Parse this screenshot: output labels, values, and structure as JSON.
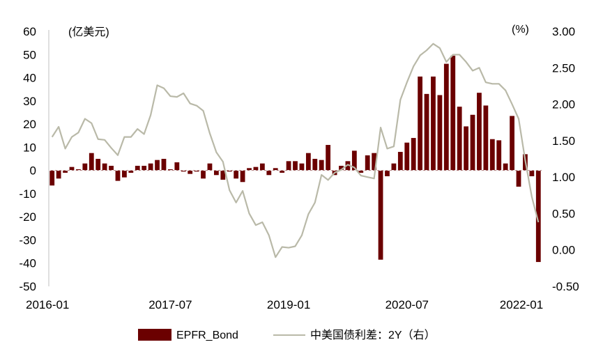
{
  "chart_data": {
    "type": "bar",
    "left_unit": "(亿美元)",
    "right_unit": "(%)",
    "x_tick_labels": [
      "2016-01",
      "2017-07",
      "2019-01",
      "2020-07",
      "2022-01"
    ],
    "left_axis": {
      "min": -50,
      "max": 60,
      "ticks": [
        "60",
        "50",
        "40",
        "30",
        "20",
        "10",
        "0",
        "-10",
        "-20",
        "-30",
        "-40",
        "-50"
      ]
    },
    "right_axis": {
      "min": -0.5,
      "max": 3.0,
      "ticks": [
        "3.00",
        "2.50",
        "2.00",
        "1.50",
        "1.00",
        "0.50",
        "0.00",
        "-0.50"
      ]
    },
    "categories": [
      "2016-01",
      "2016-02",
      "2016-03",
      "2016-04",
      "2016-05",
      "2016-06",
      "2016-07",
      "2016-08",
      "2016-09",
      "2016-10",
      "2016-11",
      "2016-12",
      "2017-01",
      "2017-02",
      "2017-03",
      "2017-04",
      "2017-05",
      "2017-06",
      "2017-07",
      "2017-08",
      "2017-09",
      "2017-10",
      "2017-11",
      "2017-12",
      "2018-01",
      "2018-02",
      "2018-03",
      "2018-04",
      "2018-05",
      "2018-06",
      "2018-07",
      "2018-08",
      "2018-09",
      "2018-10",
      "2018-11",
      "2018-12",
      "2019-01",
      "2019-02",
      "2019-03",
      "2019-04",
      "2019-05",
      "2019-06",
      "2019-07",
      "2019-08",
      "2019-09",
      "2019-10",
      "2019-11",
      "2019-12",
      "2020-01",
      "2020-02",
      "2020-03",
      "2020-04",
      "2020-05",
      "2020-06",
      "2020-07",
      "2020-08",
      "2020-09",
      "2020-10",
      "2020-11",
      "2020-12",
      "2021-01",
      "2021-02",
      "2021-03",
      "2021-04",
      "2021-05",
      "2021-06",
      "2021-07",
      "2021-08",
      "2021-09",
      "2021-10",
      "2021-11",
      "2021-12",
      "2022-01",
      "2022-02",
      "2022-03"
    ],
    "series": [
      {
        "name": "EPFR_Bond",
        "axis": "left",
        "color": "#6b0000",
        "values": [
          -6.5,
          -3.5,
          -1,
          1.5,
          0.5,
          3,
          7.5,
          5,
          3,
          2,
          -4.5,
          -3,
          -1,
          2,
          2,
          3,
          4.5,
          5,
          0.5,
          3.5,
          -0.5,
          -1.5,
          -0.5,
          -3.5,
          3,
          -2,
          -4,
          -0.5,
          -3.5,
          -5,
          1,
          1.5,
          3,
          -2,
          1,
          -1,
          4,
          4,
          3,
          7.5,
          5,
          4.5,
          11,
          -2,
          2,
          4,
          8.5,
          -1,
          6.5,
          7.5,
          -38.5,
          -2.5,
          3,
          8,
          12,
          14,
          40.5,
          33,
          40.5,
          32.5,
          46,
          49.5,
          27.5,
          19,
          24,
          33.5,
          28,
          13.5,
          13,
          3,
          23.5,
          -7,
          7,
          -2.5,
          -39.5
        ]
      },
      {
        "name": "中美国债利差：2Y（右）",
        "axis": "right",
        "color": "#b9b9a8",
        "values": [
          1.55,
          1.69,
          1.39,
          1.55,
          1.61,
          1.8,
          1.74,
          1.52,
          1.51,
          1.4,
          1.3,
          1.55,
          1.55,
          1.66,
          1.59,
          1.85,
          2.26,
          2.22,
          2.11,
          2.1,
          2.15,
          2.01,
          1.98,
          1.91,
          1.6,
          1.34,
          1.21,
          0.82,
          0.65,
          0.81,
          0.5,
          0.34,
          0.38,
          0.2,
          -0.1,
          0.04,
          0.03,
          0.05,
          0.2,
          0.49,
          0.65,
          1.03,
          0.96,
          1.06,
          1.1,
          1.17,
          1.13,
          1.02,
          1.0,
          0.98,
          1.68,
          1.39,
          1.42,
          2.06,
          2.3,
          2.52,
          2.67,
          2.74,
          2.83,
          2.77,
          2.58,
          2.68,
          2.68,
          2.58,
          2.46,
          2.5,
          2.3,
          2.28,
          2.28,
          2.19,
          2.0,
          1.8,
          1.23,
          0.73,
          0.38
        ]
      }
    ],
    "legend_position": "bottom",
    "grid": false
  },
  "legend": {
    "bar_label": "EPFR_Bond",
    "line_label": "中美国债利差：2Y（右）"
  }
}
